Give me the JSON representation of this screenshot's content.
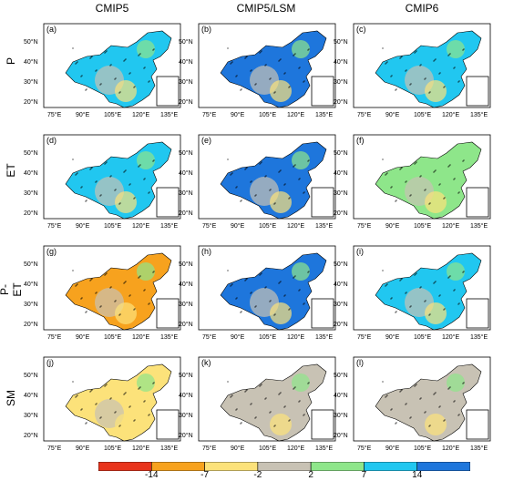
{
  "columns": [
    "CMIP5",
    "CMIP5/LSM",
    "CMIP6"
  ],
  "rows": [
    "P",
    "ET",
    "P-ET",
    "SM"
  ],
  "panel_labels": [
    "(a)",
    "(b)",
    "(c)",
    "(d)",
    "(e)",
    "(f)",
    "(g)",
    "(h)",
    "(i)",
    "(j)",
    "(k)",
    "(l)"
  ],
  "lat_ticks": [
    "20°N",
    "30°N",
    "40°N",
    "50°N"
  ],
  "lon_ticks": [
    "75°E",
    "90°E",
    "105°E",
    "120°E",
    "135°E"
  ],
  "colorbar": {
    "labels": [
      "-14",
      "-7",
      "-2",
      "2",
      "7",
      "14"
    ],
    "colors": [
      "#e8341c",
      "#f7a21e",
      "#fce27a",
      "#c8c2b4",
      "#8ee68a",
      "#21c7f0",
      "#1e76dc"
    ]
  },
  "panel_fill": [
    [
      "#21c7f0",
      "#1e76dc",
      "#21c7f0"
    ],
    [
      "#21c7f0",
      "#1e76dc",
      "#8ee68a"
    ],
    [
      "#f7a21e",
      "#1e76dc",
      "#21c7f0"
    ],
    [
      "#fce27a",
      "#c8c2b4",
      "#c8c2b4"
    ]
  ]
}
